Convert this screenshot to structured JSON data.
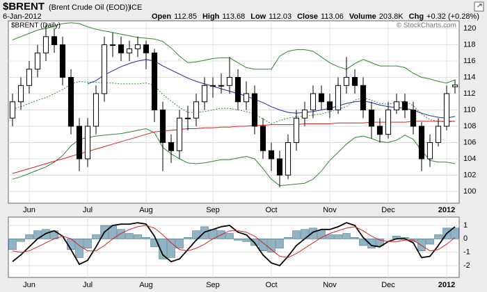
{
  "header": {
    "symbol": "$BRENT",
    "name": "(Brent Crude Oil (EOD))",
    "exchange": "ICE",
    "date": "6-Jan-2012",
    "quote": [
      {
        "label": "Open",
        "value": "112.85"
      },
      {
        "label": "High",
        "value": "113.68"
      },
      {
        "label": "Low",
        "value": "112.03"
      },
      {
        "label": "Close",
        "value": "113.06"
      },
      {
        "label": "Volume",
        "value": "203.8K"
      },
      {
        "label": "Chg",
        "value": "+0.32 (+0.28%)"
      }
    ],
    "copyright": "© StockCharts.com"
  },
  "chart_data": [
    {
      "type": "candlestick",
      "label": "$BRENT (Daily)",
      "categories": [
        null,
        null,
        "Jun",
        null,
        null,
        null,
        null,
        null,
        null,
        "Jul",
        null,
        null,
        null,
        null,
        null,
        null,
        "Aug",
        null,
        null,
        null,
        null,
        null,
        null,
        null,
        "Sep",
        null,
        null,
        null,
        null,
        null,
        null,
        "Oct",
        null,
        null,
        null,
        null,
        null,
        null,
        "Nov",
        null,
        null,
        null,
        null,
        null,
        null,
        "Dec",
        null,
        null,
        null,
        null,
        null,
        null,
        "2012",
        null
      ],
      "open": [
        109,
        111,
        113,
        115,
        117,
        119,
        118,
        114,
        108,
        104,
        108,
        112,
        118,
        118,
        117,
        117.5,
        118,
        117,
        110,
        106,
        105,
        109,
        109,
        111,
        113,
        113,
        113,
        114,
        111,
        112,
        108,
        105,
        104,
        102,
        106,
        109,
        110,
        112,
        111,
        110,
        113,
        114,
        113,
        110,
        108,
        107,
        110,
        111,
        110,
        108,
        104,
        106,
        108,
        112.85
      ],
      "high": [
        112,
        114,
        116,
        118,
        120.5,
        120,
        119,
        115,
        109,
        109,
        113,
        119,
        119.5,
        119,
        118.5,
        119,
        118.5,
        117.5,
        111,
        107,
        110,
        110.5,
        112,
        114,
        114,
        114.5,
        116.5,
        115,
        113.5,
        113,
        109,
        106,
        105,
        107,
        110,
        111,
        113,
        113,
        112,
        114,
        116.5,
        115,
        114,
        111,
        109,
        111,
        112,
        112,
        111,
        108.5,
        107,
        109,
        113,
        113.68
      ],
      "low": [
        108,
        110,
        112,
        114,
        116,
        117,
        113,
        107,
        102.5,
        103,
        107,
        111,
        116.5,
        116,
        116,
        116.5,
        115,
        108.5,
        102.5,
        103.5,
        104,
        107.5,
        108,
        110,
        111.5,
        112,
        112,
        110,
        110,
        107,
        104,
        102.5,
        100.5,
        101.5,
        105,
        108,
        109,
        110,
        109,
        109.5,
        112,
        112,
        109,
        106.5,
        106,
        106.5,
        109.5,
        109,
        107,
        102.5,
        103,
        105.5,
        107.5,
        112.03
      ],
      "close": [
        111,
        113,
        115,
        117,
        119,
        118,
        114,
        108,
        104,
        108,
        112,
        118,
        118,
        117,
        117.5,
        118,
        117,
        110,
        106,
        105,
        109,
        109,
        111,
        113,
        113,
        113,
        114,
        111,
        112,
        108,
        105,
        104,
        102,
        106,
        109,
        110,
        112,
        111,
        110,
        113,
        114,
        113,
        110,
        108,
        107,
        110,
        111,
        110,
        108,
        104,
        106,
        108,
        112,
        113.06
      ],
      "up_color": "#ffffff",
      "down_color": "#000000",
      "candle_color": "#000000",
      "series": [
        {
          "color": "#2a8a2a",
          "dash": false,
          "values": [
            118.6,
            119.0,
            119.4,
            119.8,
            120.0,
            120.3,
            120.6,
            120.7,
            120.6,
            120.2,
            119.9,
            119.7,
            119.5,
            119.3,
            119.1,
            118.9,
            118.8,
            118.7,
            118.4,
            117.6,
            116.6,
            115.8,
            115.9,
            116.1,
            116.3,
            116.4,
            116.4,
            115.8,
            115.2,
            115.0,
            115.0,
            115.0,
            116.6,
            117.2,
            117.4,
            117.4,
            117.2,
            116.5,
            115.8,
            115.3,
            115.0,
            115.7,
            116.2,
            115.8,
            115.4,
            115.4,
            115.4,
            115.2,
            114.5,
            114.0,
            113.8,
            113.5,
            113.3,
            113.7
          ]
        },
        {
          "color": "#2a8a2a",
          "dash": false,
          "values": [
            101.5,
            101.8,
            102.2,
            102.6,
            103.0,
            103.6,
            104.4,
            105.6,
            106.4,
            106.6,
            106.8,
            106.9,
            107.0,
            107.1,
            107.3,
            107.5,
            107.7,
            107.2,
            105.4,
            104.6,
            104.0,
            103.5,
            103.4,
            103.5,
            103.7,
            103.9,
            103.9,
            104.1,
            104.3,
            104.0,
            102.8,
            101.5,
            100.7,
            100.8,
            100.9,
            101.0,
            101.5,
            102.5,
            103.8,
            104.8,
            105.8,
            106.6,
            106.8,
            106.5,
            106.1,
            106.0,
            106.3,
            106.9,
            106.4,
            105.0,
            103.8,
            103.6,
            103.6,
            103.4
          ]
        },
        {
          "color": "#2a8a2a",
          "dash": true,
          "values": [
            110.1,
            110.4,
            110.8,
            111.2,
            111.5,
            112.0,
            112.5,
            113.2,
            113.5,
            113.4,
            113.4,
            113.3,
            113.3,
            113.2,
            113.2,
            113.2,
            113.3,
            113.0,
            111.9,
            111.1,
            110.3,
            109.7,
            109.7,
            109.8,
            110.0,
            110.2,
            110.2,
            110.0,
            109.8,
            109.5,
            108.9,
            108.3,
            108.7,
            109.0,
            109.2,
            109.2,
            109.4,
            109.5,
            109.8,
            110.1,
            110.4,
            111.2,
            111.5,
            111.2,
            110.8,
            110.7,
            110.9,
            111.1,
            110.5,
            109.5,
            108.8,
            108.6,
            108.5,
            108.6
          ]
        },
        {
          "color": "#1c2a9c",
          "dash": false,
          "values": [
            null,
            null,
            null,
            null,
            null,
            null,
            null,
            null,
            null,
            113.2,
            113.6,
            114.3,
            114.8,
            115.3,
            115.7,
            116.0,
            116.2,
            116.0,
            115.4,
            114.9,
            114.4,
            113.9,
            113.5,
            113.2,
            112.9,
            112.6,
            112.3,
            112.0,
            111.7,
            111.3,
            110.9,
            110.4,
            110.0,
            109.7,
            109.6,
            109.7,
            109.8,
            110.0,
            110.2,
            110.5,
            110.8,
            111.0,
            111.1,
            110.9,
            110.6,
            110.4,
            110.3,
            110.2,
            110.0,
            109.6,
            109.3,
            109.1,
            109.0,
            109.2
          ]
        },
        {
          "color": "#d62020",
          "dash": false,
          "values": [
            102.2,
            102.5,
            102.8,
            103.1,
            103.4,
            103.7,
            104.0,
            104.3,
            104.6,
            104.9,
            105.2,
            105.5,
            105.8,
            106.1,
            106.4,
            106.7,
            107.0,
            107.3,
            107.4,
            107.5,
            107.6,
            107.7,
            107.7,
            107.8,
            107.8,
            107.9,
            107.9,
            108.0,
            108.0,
            108.1,
            108.1,
            108.2,
            108.2,
            108.2,
            108.2,
            108.3,
            108.3,
            108.3,
            108.3,
            108.4,
            108.4,
            108.4,
            108.4,
            108.5,
            108.5,
            108.5,
            108.5,
            108.5,
            108.6,
            108.6,
            108.6,
            108.6,
            108.6,
            108.6
          ]
        }
      ],
      "ylim": [
        98.55,
        120.94
      ],
      "yticks": [
        100,
        102,
        104,
        106,
        108,
        110,
        112,
        114,
        116,
        118,
        120
      ],
      "grid": true
    },
    {
      "type": "macd",
      "series": [
        {
          "kind": "histogram",
          "color": "#8fb4c6",
          "values": [
            -0.8,
            -0.2,
            0.3,
            0.6,
            0.7,
            0.6,
            0.0,
            -0.8,
            -1.4,
            -0.7,
            0.3,
            1.0,
            1.0,
            0.7,
            0.4,
            0.3,
            0.1,
            -0.6,
            -1.5,
            -1.4,
            -0.7,
            0.1,
            0.6,
            0.9,
            0.7,
            0.6,
            0.4,
            -0.1,
            -0.2,
            -0.5,
            -0.9,
            -1.0,
            -0.7,
            0.1,
            0.6,
            0.7,
            0.8,
            0.6,
            0.3,
            0.3,
            0.4,
            0.1,
            -0.5,
            -0.7,
            -0.5,
            0.0,
            0.2,
            0.1,
            -0.2,
            -0.9,
            -0.4,
            0.3,
            0.8,
            0.8
          ]
        },
        {
          "kind": "line",
          "color": "#000000",
          "values": [
            -1.7,
            -1.2,
            -0.6,
            0.0,
            0.4,
            0.6,
            0.2,
            -0.8,
            -1.9,
            -1.6,
            -0.6,
            0.5,
            1.0,
            1.1,
            1.1,
            1.2,
            1.1,
            0.2,
            -1.2,
            -1.7,
            -1.5,
            -0.8,
            -0.1,
            0.5,
            0.7,
            0.9,
            1.0,
            0.5,
            0.3,
            -0.3,
            -1.2,
            -1.8,
            -2.0,
            -1.3,
            -0.5,
            0.0,
            0.5,
            0.7,
            0.7,
            0.9,
            1.2,
            1.0,
            0.1,
            -0.5,
            -0.6,
            -0.2,
            0.0,
            0.0,
            -0.3,
            -1.4,
            -1.3,
            -0.5,
            0.4,
            0.9
          ]
        },
        {
          "kind": "line",
          "color": "#d62020",
          "values": [
            -0.9,
            -1.0,
            -0.9,
            -0.6,
            -0.3,
            0.0,
            0.2,
            0.0,
            -0.5,
            -0.9,
            -0.9,
            -0.5,
            0.0,
            0.4,
            0.7,
            0.9,
            1.0,
            0.8,
            0.3,
            -0.3,
            -0.8,
            -0.9,
            -0.7,
            -0.4,
            0.0,
            0.3,
            0.6,
            0.6,
            0.5,
            0.2,
            -0.3,
            -0.8,
            -1.3,
            -1.4,
            -1.1,
            -0.7,
            -0.3,
            0.1,
            0.4,
            0.6,
            0.8,
            0.9,
            0.6,
            0.2,
            -0.1,
            -0.2,
            -0.2,
            -0.1,
            -0.1,
            -0.5,
            -0.9,
            -0.8,
            -0.4,
            0.1
          ]
        }
      ],
      "ylim": [
        -2.88,
        1.62
      ],
      "yticks": [
        -2,
        -1,
        0,
        1
      ],
      "grid": true
    }
  ]
}
